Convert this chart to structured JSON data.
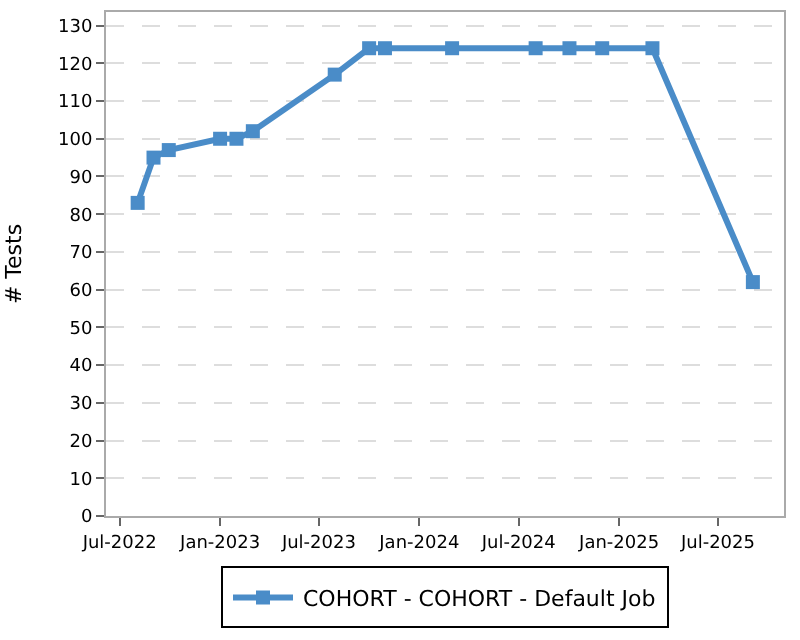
{
  "chart_data": {
    "type": "line",
    "ylabel": "# Tests",
    "x": [
      "2022-08-03",
      "2022-09-01",
      "2022-09-29",
      "2023-01-01",
      "2023-01-31",
      "2023-03-02",
      "2023-07-30",
      "2023-10-01",
      "2023-10-30",
      "2024-03-01",
      "2024-08-01",
      "2024-10-02",
      "2024-12-01",
      "2025-03-03",
      "2025-09-03"
    ],
    "series": [
      {
        "name": "COHORT - COHORT - Default Job",
        "color": "#4a8cc8",
        "values": [
          83,
          95,
          97,
          100,
          100,
          102,
          117,
          124,
          124,
          124,
          124,
          124,
          124,
          124,
          62
        ]
      }
    ],
    "xlim": [
      "2022-06-06",
      "2025-10-30"
    ],
    "xticks": [
      {
        "value": "2022-07-01",
        "label": "Jul-2022"
      },
      {
        "value": "2023-01-01",
        "label": "Jan-2023"
      },
      {
        "value": "2023-07-01",
        "label": "Jul-2023"
      },
      {
        "value": "2024-01-01",
        "label": "Jan-2024"
      },
      {
        "value": "2024-07-01",
        "label": "Jul-2024"
      },
      {
        "value": "2025-01-01",
        "label": "Jan-2025"
      },
      {
        "value": "2025-07-01",
        "label": "Jul-2025"
      }
    ],
    "ylim": [
      0,
      133.6
    ],
    "yticks": [
      0,
      10,
      20,
      30,
      40,
      50,
      60,
      70,
      80,
      90,
      100,
      110,
      120,
      130
    ],
    "grid": "y",
    "legend": "bottom",
    "marker": "square",
    "line_style": "solid"
  }
}
